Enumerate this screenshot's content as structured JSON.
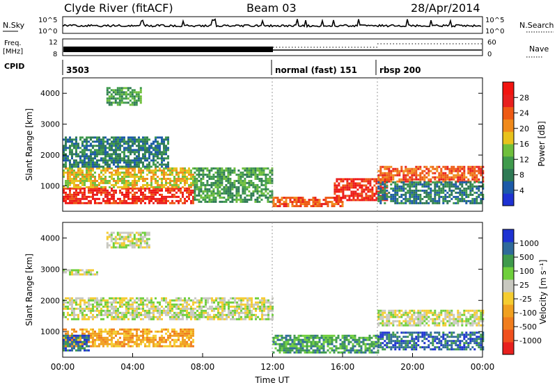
{
  "header": {
    "station": "Clyde River (fitACF)",
    "beam": "Beam 03",
    "date": "28/Apr/2014"
  },
  "strips": {
    "nsky_label": "N.Sky",
    "nsky_ticks": [
      "10^5",
      "10^0"
    ],
    "nsearch_label": "N.Search",
    "nsearch_ticks": [
      "10^5",
      "10^0"
    ],
    "freq_label_1": "Freq.",
    "freq_label_2": "[MHz]",
    "freq_ticks": [
      "12",
      "8"
    ],
    "nave_label": "Nave",
    "nave_ticks": [
      "60",
      "0"
    ],
    "cpid_label": "CPID",
    "cpid_segments": [
      {
        "label": "3503",
        "start_hour": 0
      },
      {
        "label": "normal (fast) 151",
        "start_hour": 12
      },
      {
        "label": "rbsp 200",
        "start_hour": 18
      }
    ]
  },
  "chart_data": [
    {
      "type": "heatmap",
      "name": "power",
      "xlabel": "",
      "ylabel": "Slant Range [km]",
      "xlim": [
        0,
        24
      ],
      "ylim": [
        180,
        4500
      ],
      "yticks": [
        1000,
        2000,
        3000,
        4000
      ],
      "colorbar": {
        "label": "Power [dB]",
        "ticks": [
          "4",
          "8",
          "12",
          "16",
          "20",
          "24",
          "28"
        ],
        "colors": [
          "#1e32d2",
          "#1c5aa8",
          "#2f7a55",
          "#3f9a4c",
          "#6fbf3c",
          "#e8c21c",
          "#f08a1c",
          "#ee5a14",
          "#e8201e",
          "#f21410"
        ]
      },
      "bands": [
        {
          "from_hour": 0,
          "to_hour": 7.5,
          "range_km": [
            450,
            950
          ],
          "level": 28
        },
        {
          "from_hour": 0,
          "to_hour": 7.5,
          "range_km": [
            950,
            1600
          ],
          "level": 16
        },
        {
          "from_hour": 0,
          "to_hour": 6,
          "range_km": [
            1600,
            2600
          ],
          "level": 8
        },
        {
          "from_hour": 7.5,
          "to_hour": 12,
          "range_km": [
            500,
            1600
          ],
          "level": 12
        },
        {
          "from_hour": 12,
          "to_hour": 16,
          "range_km": [
            350,
            650
          ],
          "level": 24
        },
        {
          "from_hour": 15.5,
          "to_hour": 18.5,
          "range_km": [
            550,
            1250
          ],
          "level": 28
        },
        {
          "from_hour": 18,
          "to_hour": 24,
          "range_km": [
            1150,
            1650
          ],
          "level": 24
        },
        {
          "from_hour": 18,
          "to_hour": 24,
          "range_km": [
            450,
            1150
          ],
          "level": 8
        },
        {
          "from_hour": 2.5,
          "to_hour": 4.5,
          "range_km": [
            3600,
            4200
          ],
          "level": 12
        }
      ]
    },
    {
      "type": "heatmap",
      "name": "velocity",
      "xlabel": "Time UT",
      "ylabel": "Slant Range [km]",
      "xlim": [
        0,
        24
      ],
      "ylim": [
        180,
        4500
      ],
      "yticks": [
        1000,
        2000,
        3000,
        4000
      ],
      "xticks": [
        "00:00",
        "04:00",
        "08:00",
        "12:00",
        "16:00",
        "20:00",
        "00:00"
      ],
      "colorbar": {
        "label": "Velocity [m s⁻¹]",
        "ticks": [
          "-1000",
          "-500",
          "-100",
          "-25",
          "25",
          "100",
          "500",
          "1000"
        ],
        "colors": [
          "#e8201e",
          "#f0501e",
          "#f07d1e",
          "#f0a020",
          "#f5cc30",
          "#c8c8c0",
          "#6fcf3c",
          "#3f9a4c",
          "#2f6a9a",
          "#1e32d2"
        ]
      },
      "bands": [
        {
          "from_hour": 0,
          "to_hour": 7.5,
          "range_km": [
            500,
            1100
          ],
          "level": -100
        },
        {
          "from_hour": 0,
          "to_hour": 1.5,
          "range_km": [
            400,
            900
          ],
          "level": 500
        },
        {
          "from_hour": 0,
          "to_hour": 12,
          "range_km": [
            1400,
            2100
          ],
          "level": 0
        },
        {
          "from_hour": 12,
          "to_hour": 18,
          "range_km": [
            300,
            900
          ],
          "level": 200
        },
        {
          "from_hour": 18,
          "to_hour": 24,
          "range_km": [
            400,
            1000
          ],
          "level": 500
        },
        {
          "from_hour": 18,
          "to_hour": 24,
          "range_km": [
            1200,
            1700
          ],
          "level": 0
        },
        {
          "from_hour": 2.5,
          "to_hour": 5,
          "range_km": [
            3700,
            4200
          ],
          "level": 0
        },
        {
          "from_hour": 0,
          "to_hour": 2,
          "range_km": [
            2800,
            3000
          ],
          "level": 0
        }
      ]
    }
  ]
}
